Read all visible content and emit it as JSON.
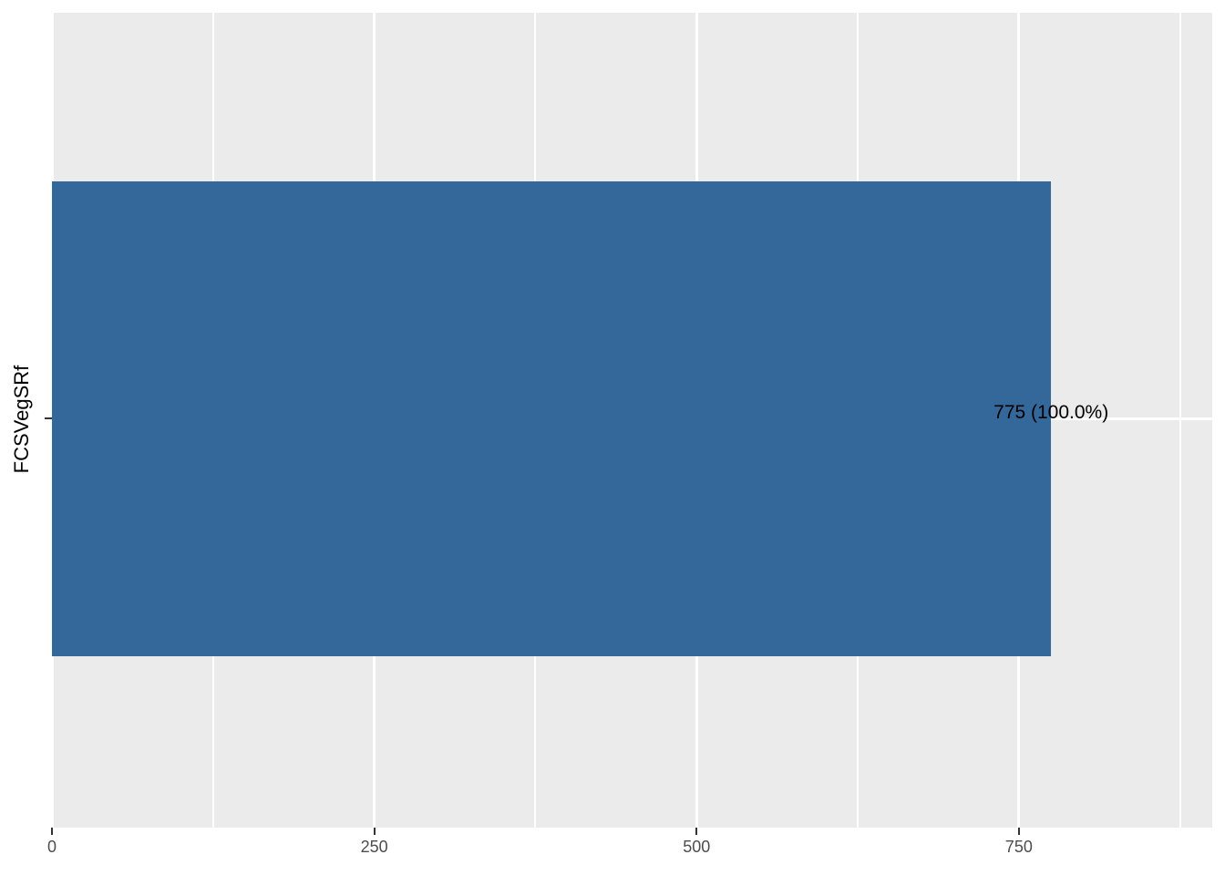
{
  "chart_data": {
    "type": "bar",
    "orientation": "horizontal",
    "title": "",
    "xlabel": "",
    "ylabel": "FCSVegSRf",
    "categories": [
      ""
    ],
    "values": [
      775
    ],
    "bar_labels": [
      "775 (100.0%)"
    ],
    "xlim": [
      0,
      900
    ],
    "x_ticks": [
      0,
      250,
      500,
      750
    ],
    "x_tick_labels": [
      "0",
      "250",
      "500",
      "750"
    ],
    "x_minor_ticks": [
      125,
      375,
      625,
      875
    ],
    "grid": "on",
    "legend": "none",
    "colors": {
      "bar_fill": "#34689B",
      "panel_background": "#EBEBEB",
      "gridline": "#FFFFFF",
      "tick_mark": "#333333",
      "tick_label": "#4D4D4D",
      "axis_title": "#000000",
      "bar_label": "#000000",
      "figure_background": "#FFFFFF"
    }
  }
}
